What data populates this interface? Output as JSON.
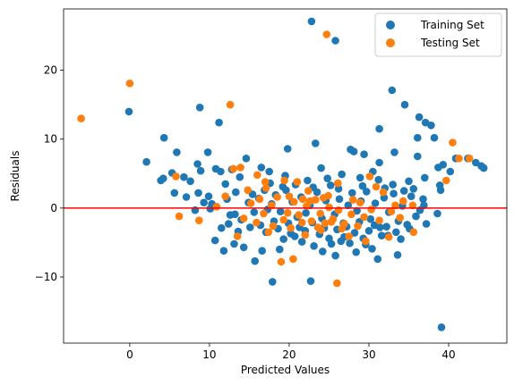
{
  "chart_data": {
    "type": "scatter",
    "title": "",
    "xlabel": "Predicted Values",
    "ylabel": "Residuals",
    "xlim": [
      -8.3,
      47.3
    ],
    "ylim": [
      -19.6,
      28.9
    ],
    "xticks": [
      0,
      10,
      20,
      30,
      40
    ],
    "yticks": [
      -10,
      0,
      10,
      20
    ],
    "grid": false,
    "legend": "top-right",
    "reference_line": {
      "y": 0,
      "color": "#ff0000"
    },
    "series": [
      {
        "name": "Training Set",
        "color": "#1f77b4",
        "points": [
          [
            22.8,
            27.1
          ],
          [
            25.8,
            24.3
          ],
          [
            32.9,
            17.1
          ],
          [
            34.5,
            15.0
          ],
          [
            -0.1,
            14.0
          ],
          [
            8.8,
            14.6
          ],
          [
            11.2,
            12.4
          ],
          [
            36.3,
            13.2
          ],
          [
            37.1,
            12.4
          ],
          [
            37.8,
            12.0
          ],
          [
            31.3,
            11.5
          ],
          [
            4.3,
            10.2
          ],
          [
            2.1,
            6.7
          ],
          [
            5.9,
            8.1
          ],
          [
            9.8,
            8.1
          ],
          [
            19.8,
            8.6
          ],
          [
            23.3,
            9.4
          ],
          [
            27.7,
            8.5
          ],
          [
            38.2,
            10.2
          ],
          [
            36.1,
            10.2
          ],
          [
            40.2,
            5.3
          ],
          [
            40.9,
            7.2
          ],
          [
            42.4,
            7.2
          ],
          [
            43.4,
            6.6
          ],
          [
            44.1,
            6.1
          ],
          [
            44.4,
            5.8
          ],
          [
            39.3,
            6.3
          ],
          [
            38.7,
            5.9
          ],
          [
            36.1,
            7.5
          ],
          [
            33.2,
            8.1
          ],
          [
            31.3,
            6.6
          ],
          [
            30.5,
            5.3
          ],
          [
            29.4,
            7.8
          ],
          [
            28.1,
            8.2
          ],
          [
            4.2,
            4.3
          ],
          [
            3.9,
            4.0
          ],
          [
            5.3,
            5.1
          ],
          [
            5.6,
            2.2
          ],
          [
            6.8,
            4.5
          ],
          [
            7.6,
            3.9
          ],
          [
            8.5,
            6.4
          ],
          [
            8.9,
            5.4
          ],
          [
            10.8,
            5.7
          ],
          [
            11.4,
            5.3
          ],
          [
            12.8,
            5.6
          ],
          [
            13.8,
            4.5
          ],
          [
            14.6,
            7.2
          ],
          [
            16.5,
            5.9
          ],
          [
            17.5,
            5.3
          ],
          [
            19.5,
            4.7
          ],
          [
            22.3,
            4.0
          ],
          [
            24.0,
            5.8
          ],
          [
            24.8,
            4.3
          ],
          [
            26.6,
            4.9
          ],
          [
            28.9,
            4.4
          ],
          [
            31.2,
            4.1
          ],
          [
            33.0,
            3.4
          ],
          [
            35.0,
            3.9
          ],
          [
            37.0,
            4.4
          ],
          [
            38.9,
            3.3
          ],
          [
            39.0,
            2.6
          ],
          [
            38.6,
            -0.8
          ],
          [
            7.1,
            1.6
          ],
          [
            8.2,
            -0.3
          ],
          [
            8.6,
            2.2
          ],
          [
            9.9,
            1.7
          ],
          [
            10.3,
            0.6
          ],
          [
            10.7,
            -4.7
          ],
          [
            11.8,
            -6.2
          ],
          [
            12.4,
            -2.3
          ],
          [
            13.1,
            -5.2
          ],
          [
            13.6,
            -3.4
          ],
          [
            14.3,
            -5.7
          ],
          [
            15.1,
            -2.8
          ],
          [
            15.7,
            -7.7
          ],
          [
            16.6,
            -6.2
          ],
          [
            17.9,
            -10.7
          ],
          [
            18.8,
            -6.0
          ],
          [
            19.3,
            -4.5
          ],
          [
            20.2,
            -3.7
          ],
          [
            21.6,
            -4.9
          ],
          [
            22.7,
            -10.6
          ],
          [
            23.1,
            -5.5
          ],
          [
            24.2,
            -6.3
          ],
          [
            25.3,
            -5.2
          ],
          [
            25.8,
            -6.9
          ],
          [
            26.9,
            -4.2
          ],
          [
            27.6,
            -5.1
          ],
          [
            28.4,
            -6.4
          ],
          [
            29.6,
            -5.3
          ],
          [
            30.4,
            -5.9
          ],
          [
            31.1,
            -7.4
          ],
          [
            32.4,
            -4.0
          ],
          [
            33.6,
            -6.8
          ],
          [
            35.1,
            -3.0
          ],
          [
            39.1,
            -17.3
          ],
          [
            12.2,
            1.3
          ],
          [
            13.3,
            2.3
          ],
          [
            14.9,
            0.8
          ],
          [
            15.4,
            2.0
          ],
          [
            16.2,
            1.4
          ],
          [
            16.9,
            2.6
          ],
          [
            17.3,
            -0.2
          ],
          [
            17.8,
            0.6
          ],
          [
            18.3,
            1.9
          ],
          [
            18.9,
            -0.5
          ],
          [
            19.6,
            2.6
          ],
          [
            20.4,
            0.9
          ],
          [
            21.0,
            -1.3
          ],
          [
            21.5,
            1.6
          ],
          [
            22.1,
            -0.7
          ],
          [
            22.6,
            0.4
          ],
          [
            23.5,
            2.3
          ],
          [
            24.1,
            -1.5
          ],
          [
            24.6,
            1.1
          ],
          [
            25.2,
            3.3
          ],
          [
            25.7,
            -0.9
          ],
          [
            26.3,
            1.3
          ],
          [
            26.8,
            -2.2
          ],
          [
            27.4,
            0.4
          ],
          [
            27.9,
            2.2
          ],
          [
            28.5,
            -0.4
          ],
          [
            29.0,
            1.0
          ],
          [
            29.7,
            2.4
          ],
          [
            30.2,
            -1.6
          ],
          [
            30.8,
            0.7
          ],
          [
            31.4,
            -2.8
          ],
          [
            31.9,
            1.5
          ],
          [
            32.5,
            -0.6
          ],
          [
            33.1,
            2.1
          ],
          [
            33.7,
            -1.9
          ],
          [
            34.2,
            0.3
          ],
          [
            34.8,
            -2.4
          ],
          [
            35.3,
            1.7
          ],
          [
            35.9,
            -1.2
          ],
          [
            36.4,
            -0.3
          ],
          [
            37.2,
            -2.3
          ],
          [
            36.8,
            1.3
          ],
          [
            13.2,
            -0.9
          ],
          [
            14.0,
            -1.7
          ],
          [
            15.6,
            -0.6
          ],
          [
            16.4,
            -2.5
          ],
          [
            17.1,
            -3.5
          ],
          [
            18.1,
            -1.9
          ],
          [
            18.6,
            -3.0
          ],
          [
            19.9,
            -2.2
          ],
          [
            20.7,
            -4.1
          ],
          [
            21.3,
            -2.8
          ],
          [
            22.0,
            -3.3
          ],
          [
            22.9,
            -2.1
          ],
          [
            23.8,
            -3.8
          ],
          [
            24.4,
            -2.9
          ],
          [
            25.0,
            -4.4
          ],
          [
            26.0,
            -3.1
          ],
          [
            26.5,
            -4.8
          ],
          [
            27.2,
            -2.7
          ],
          [
            28.2,
            -3.6
          ],
          [
            28.8,
            -2.0
          ],
          [
            29.3,
            -4.4
          ],
          [
            30.0,
            -3.3
          ],
          [
            30.7,
            -2.5
          ],
          [
            31.6,
            -4.0
          ],
          [
            32.2,
            -2.7
          ],
          [
            33.4,
            -3.5
          ],
          [
            34.0,
            -4.5
          ],
          [
            12.0,
            3.5
          ],
          [
            12.6,
            -1.0
          ],
          [
            17.6,
            3.6
          ],
          [
            19.2,
            3.1
          ],
          [
            20.8,
            3.4
          ],
          [
            23.0,
            3.0
          ],
          [
            26.2,
            2.8
          ],
          [
            29.2,
            3.2
          ],
          [
            32.0,
            2.9
          ],
          [
            34.4,
            2.5
          ],
          [
            35.6,
            2.8
          ],
          [
            36.9,
            0.4
          ],
          [
            11.5,
            -2.9
          ],
          [
            10.1,
            -0.1
          ],
          [
            9.3,
            0.8
          ]
        ]
      },
      {
        "name": "Testing Set",
        "color": "#ff7f0e",
        "points": [
          [
            24.7,
            25.2
          ],
          [
            0.0,
            18.1
          ],
          [
            -6.1,
            13.0
          ],
          [
            12.6,
            15.0
          ],
          [
            40.5,
            9.5
          ],
          [
            41.3,
            7.2
          ],
          [
            42.6,
            7.2
          ],
          [
            39.7,
            4.0
          ],
          [
            5.8,
            4.6
          ],
          [
            6.2,
            -1.2
          ],
          [
            8.7,
            -1.8
          ],
          [
            10.9,
            0.2
          ],
          [
            13.0,
            5.7
          ],
          [
            13.9,
            5.9
          ],
          [
            16.0,
            4.8
          ],
          [
            17.0,
            3.8
          ],
          [
            19.4,
            4.0
          ],
          [
            21.0,
            3.8
          ],
          [
            22.4,
            2.5
          ],
          [
            24.3,
            1.5
          ],
          [
            26.1,
            3.6
          ],
          [
            28.0,
            1.2
          ],
          [
            30.1,
            4.6
          ],
          [
            31.8,
            2.3
          ],
          [
            33.3,
            0.4
          ],
          [
            34.3,
            1.0
          ],
          [
            35.6,
            -3.5
          ],
          [
            32.5,
            -4.2
          ],
          [
            29.6,
            -4.8
          ],
          [
            27.5,
            -4.1
          ],
          [
            26.0,
            -10.9
          ],
          [
            24.0,
            -3.2
          ],
          [
            22.0,
            -3.9
          ],
          [
            20.5,
            -7.4
          ],
          [
            19.0,
            -7.8
          ],
          [
            17.4,
            -3.5
          ],
          [
            15.9,
            -2.1
          ],
          [
            14.3,
            -1.5
          ],
          [
            13.5,
            -4.1
          ],
          [
            12.0,
            1.7
          ],
          [
            14.8,
            2.6
          ],
          [
            16.3,
            1.3
          ],
          [
            17.8,
            0.4
          ],
          [
            18.5,
            1.6
          ],
          [
            19.8,
            -0.7
          ],
          [
            20.6,
            0.9
          ],
          [
            21.2,
            -1.0
          ],
          [
            22.2,
            0.3
          ],
          [
            22.8,
            -1.9
          ],
          [
            23.3,
            1.2
          ],
          [
            23.9,
            -0.8
          ],
          [
            24.5,
            -2.2
          ],
          [
            25.0,
            0.1
          ],
          [
            25.5,
            -1.6
          ],
          [
            26.2,
            -0.3
          ],
          [
            26.9,
            -2.3
          ],
          [
            27.8,
            -0.9
          ],
          [
            28.6,
            -2.6
          ],
          [
            29.4,
            -1.3
          ],
          [
            30.3,
            -0.2
          ],
          [
            31.3,
            -1.8
          ],
          [
            32.8,
            -0.5
          ],
          [
            33.9,
            -1.4
          ],
          [
            18.0,
            -2.6
          ],
          [
            19.3,
            -1.7
          ],
          [
            20.2,
            -2.9
          ],
          [
            21.6,
            -2.1
          ],
          [
            23.6,
            -2.8
          ],
          [
            25.3,
            -2.0
          ],
          [
            26.6,
            -3.0
          ],
          [
            15.2,
            0.7
          ],
          [
            16.8,
            -0.8
          ],
          [
            21.7,
            1.3
          ],
          [
            24.9,
            1.8
          ],
          [
            28.9,
            0.8
          ],
          [
            30.9,
            3.1
          ],
          [
            35.5,
            0.4
          ],
          [
            17.1,
            2.9
          ],
          [
            20.0,
            1.7
          ],
          [
            22.6,
            1.0
          ]
        ]
      }
    ]
  }
}
